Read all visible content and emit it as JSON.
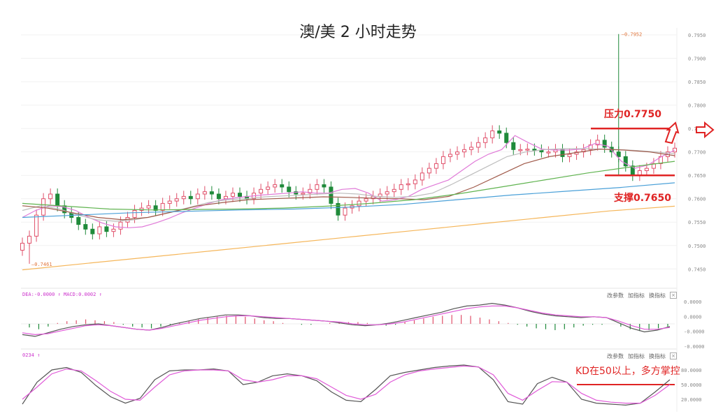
{
  "title": "澳/美 2 小时走势",
  "annotations": {
    "resistance": "压力0.7750",
    "support": "支撑0.7650",
    "kd_note": "KD在50以上，多方掌控"
  },
  "colors": {
    "bull": "#e0506a",
    "bear": "#1f8a3a",
    "annotation": "#e02424",
    "ma_pink": "#e07ad8",
    "ma_gray": "#bdbdbd",
    "ma_brown": "#a05a4a",
    "ma_green": "#5fb34f",
    "ma_blue": "#4aa0d8",
    "ma_orange": "#f5b65a"
  },
  "chart_data": [
    {
      "type": "candlestick",
      "title": "澳/美 2 小时走势",
      "y_ticks": [
        "0.7950",
        "0.7900",
        "0.7850",
        "0.7800",
        "0.7750",
        "0.7700",
        "0.7650",
        "0.7600",
        "0.7550",
        "0.7500",
        "0.7450"
      ],
      "ylim": [
        0.744,
        0.7962
      ],
      "high_label": "0.7952",
      "low_label": "0.7461",
      "resistance_level": 0.775,
      "support_level": 0.765,
      "close": [
        0.7505,
        0.752,
        0.7565,
        0.76,
        0.761,
        0.7585,
        0.757,
        0.756,
        0.7545,
        0.7535,
        0.7525,
        0.754,
        0.753,
        0.7535,
        0.755,
        0.756,
        0.7575,
        0.758,
        0.7585,
        0.7575,
        0.759,
        0.7595,
        0.76,
        0.7605,
        0.76,
        0.761,
        0.7615,
        0.761,
        0.76,
        0.7605,
        0.7612,
        0.7605,
        0.76,
        0.7612,
        0.762,
        0.7625,
        0.763,
        0.7625,
        0.7615,
        0.761,
        0.7612,
        0.762,
        0.763,
        0.7625,
        0.759,
        0.7565,
        0.758,
        0.7585,
        0.7595,
        0.76,
        0.7605,
        0.761,
        0.7615,
        0.762,
        0.763,
        0.7632,
        0.764,
        0.7655,
        0.7665,
        0.7675,
        0.769,
        0.7695,
        0.77,
        0.7705,
        0.771,
        0.772,
        0.773,
        0.7745,
        0.774,
        0.772,
        0.7705,
        0.7705,
        0.7706,
        0.7704,
        0.77,
        0.77,
        0.7705,
        0.769,
        0.7695,
        0.77,
        0.7705,
        0.7715,
        0.7725,
        0.771,
        0.77,
        0.769,
        0.767,
        0.765,
        0.766,
        0.7665,
        0.7675,
        0.769,
        0.77,
        0.7708
      ],
      "ma_series": [
        {
          "values": [
            0.756,
            0.7575,
            0.7585,
            0.7583,
            0.7575,
            0.756,
            0.7548,
            0.754,
            0.7538,
            0.754,
            0.7548,
            0.7558,
            0.757,
            0.758,
            0.759,
            0.7598,
            0.7602,
            0.7605,
            0.7608,
            0.761,
            0.7612,
            0.7615,
            0.7612,
            0.7612,
            0.762,
            0.7622,
            0.7612,
            0.7595,
            0.7598,
            0.7605,
            0.762,
            0.763,
            0.764,
            0.766,
            0.768,
            0.7695,
            0.7705,
            0.7735,
            0.772,
            0.7706,
            0.7704,
            0.7704,
            0.7706,
            0.7718,
            0.7712,
            0.768,
            0.7665,
            0.7672,
            0.769,
            0.7704
          ]
        },
        {
          "values": [
            0.7575,
            0.7585,
            0.7578,
            0.7565,
            0.7555,
            0.7552,
            0.7555,
            0.7562,
            0.7572,
            0.7582,
            0.7592,
            0.7598,
            0.76,
            0.7604,
            0.7606,
            0.7608,
            0.761,
            0.7612,
            0.761,
            0.7605,
            0.7603,
            0.7605,
            0.7612,
            0.763,
            0.765,
            0.767,
            0.769,
            0.77,
            0.7705,
            0.7707,
            0.7707,
            0.7706,
            0.7705,
            0.7703,
            0.77,
            0.7696
          ]
        },
        {
          "values": [
            0.7585,
            0.758,
            0.757,
            0.756,
            0.7555,
            0.756,
            0.7572,
            0.7585,
            0.7592,
            0.7598,
            0.76,
            0.7602,
            0.7604,
            0.7603,
            0.7601,
            0.76,
            0.7598,
            0.7605,
            0.7625,
            0.765,
            0.7675,
            0.769,
            0.7698,
            0.7706,
            0.7704,
            0.77,
            0.7692
          ]
        },
        {
          "values": [
            0.759,
            0.7584,
            0.7578,
            0.7576,
            0.7577,
            0.7578,
            0.758,
            0.7584,
            0.759,
            0.7598,
            0.761,
            0.7625,
            0.764,
            0.7655,
            0.7668,
            0.768
          ]
        },
        {
          "values": [
            0.756,
            0.7565,
            0.757,
            0.7573,
            0.7576,
            0.7578,
            0.7582,
            0.7588,
            0.7598,
            0.7608,
            0.7616,
            0.7624,
            0.7634
          ]
        },
        {
          "values": [
            0.7448,
            0.7462,
            0.7476,
            0.749,
            0.7504,
            0.7518,
            0.7532,
            0.7546,
            0.756,
            0.7574,
            0.7584
          ]
        }
      ]
    },
    {
      "type": "line",
      "name": "MACD",
      "header_label": "DEA:-0.0000 ↑ MACD:0.0002 ↑",
      "y_ticks": [
        "0.0000",
        "0.0000",
        "-0.0000",
        "-0.0000"
      ],
      "buttons": [
        "改参数",
        "加指标",
        "换指标"
      ],
      "series": [
        {
          "values": [
            -1.2,
            -1.4,
            -1.0,
            -0.6,
            -0.3,
            -0.1,
            0.0,
            -0.2,
            -0.4,
            -0.6,
            -0.7,
            -0.4,
            0.0,
            0.3,
            0.6,
            0.8,
            1.0,
            1.0,
            0.9,
            0.7,
            0.6,
            0.6,
            0.5,
            0.4,
            0.3,
            0.1,
            -0.1,
            -0.2,
            -0.1,
            0.1,
            0.4,
            0.7,
            1.0,
            1.3,
            1.7,
            2.0,
            2.1,
            2.3,
            2.1,
            1.8,
            1.4,
            1.1,
            0.9,
            0.8,
            0.7,
            0.8,
            0.7,
            0.1,
            -0.5,
            -0.9,
            -0.7,
            -0.3
          ]
        },
        {
          "values": [
            -1.0,
            -1.2,
            -1.1,
            -0.8,
            -0.5,
            -0.2,
            -0.1,
            -0.2,
            -0.4,
            -0.6,
            -0.7,
            -0.5,
            -0.2,
            0.1,
            0.4,
            0.6,
            0.8,
            0.9,
            0.9,
            0.8,
            0.7,
            0.6,
            0.5,
            0.4,
            0.3,
            0.2,
            0.0,
            -0.1,
            -0.1,
            0.0,
            0.2,
            0.5,
            0.8,
            1.1,
            1.4,
            1.7,
            1.9,
            2.0,
            2.0,
            1.8,
            1.5,
            1.2,
            1.0,
            0.9,
            0.8,
            0.8,
            0.7,
            0.3,
            -0.2,
            -0.6,
            -0.6,
            -0.4
          ]
        }
      ],
      "histogram": [
        -0.4,
        -0.6,
        -0.3,
        0.1,
        0.3,
        0.4,
        0.5,
        0.4,
        0.3,
        0.2,
        -0.1,
        -0.3,
        -0.4,
        -0.5,
        -0.3,
        -0.1,
        0.1,
        0.3,
        0.5,
        0.7,
        0.8,
        0.9,
        0.9,
        0.8,
        0.6,
        0.4,
        0.3,
        0.1,
        0.0,
        -0.1,
        -0.1,
        0.0,
        0.1,
        0.1,
        0.2,
        0.2,
        0.1,
        0.0,
        -0.2,
        -0.1,
        0.2,
        0.4,
        0.6,
        0.8,
        0.9,
        1.0,
        1.0,
        0.9,
        0.7,
        0.5,
        0.3,
        0.1,
        -0.1,
        -0.3,
        -0.5,
        -0.6,
        -0.7,
        -0.6,
        -0.4,
        -0.2,
        -0.1,
        -0.1,
        0.0,
        -0.3,
        -0.6,
        -0.8,
        -0.7,
        -0.5,
        -0.3
      ]
    },
    {
      "type": "line",
      "name": "KD",
      "header_label": "0234 ↑",
      "y_ticks": [
        "80.0000",
        "50.0000",
        "20.0000"
      ],
      "buttons": [
        "改参数",
        "加指标",
        "换指标"
      ],
      "threshold": 50,
      "series": [
        {
          "values": [
            10,
            55,
            80,
            85,
            75,
            48,
            25,
            12,
            22,
            60,
            78,
            80,
            80,
            82,
            78,
            50,
            55,
            68,
            72,
            68,
            58,
            35,
            18,
            15,
            40,
            68,
            75,
            80,
            85,
            88,
            90,
            86,
            60,
            15,
            10,
            52,
            65,
            55,
            20,
            12,
            10,
            8,
            12,
            35,
            60
          ]
        },
        {
          "values": [
            20,
            45,
            72,
            82,
            78,
            58,
            36,
            20,
            18,
            45,
            70,
            78,
            80,
            80,
            78,
            60,
            55,
            60,
            68,
            68,
            62,
            45,
            28,
            20,
            30,
            55,
            70,
            78,
            82,
            85,
            88,
            86,
            70,
            32,
            18,
            38,
            56,
            55,
            32,
            18,
            14,
            12,
            12,
            28,
            50
          ]
        }
      ]
    }
  ]
}
